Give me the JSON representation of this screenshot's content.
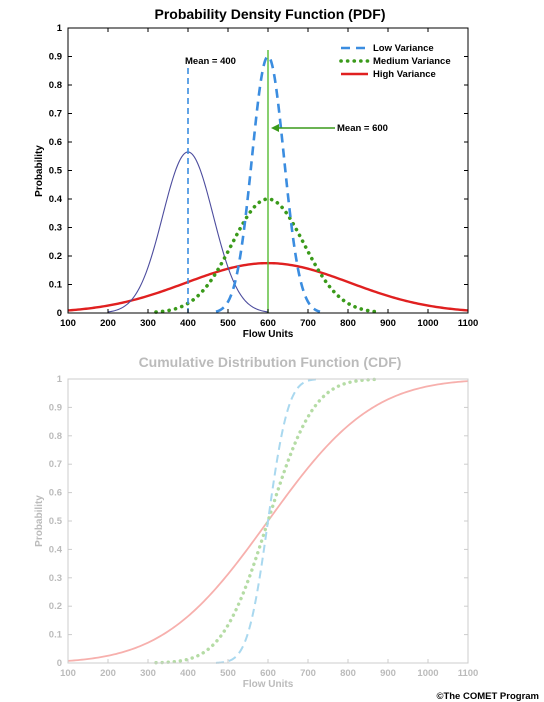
{
  "copyright": "©The COMET Program",
  "colors": {
    "low": "#3b8de0",
    "medium": "#3a9a1a",
    "high": "#e02020",
    "mean400": "#4d4d9e",
    "mean600_line": "#55bb33",
    "cdf_low": "#a9d8ef",
    "cdf_medium": "#b5dca5",
    "cdf_high": "#f7b0ad",
    "faded_axis": "#bbbbbb"
  },
  "chart_data": [
    {
      "type": "line",
      "title": "Probability Density Function (PDF)",
      "xlabel": "Flow Units",
      "ylabel": "Probability",
      "xlim": [
        100,
        1100
      ],
      "ylim": [
        0,
        1
      ],
      "xticks": [
        "100",
        "200",
        "300",
        "400",
        "500",
        "600",
        "700",
        "800",
        "900",
        "1000",
        "1100"
      ],
      "yticks": [
        "0",
        "0.1",
        "0.2",
        "0.3",
        "0.4",
        "0.5",
        "0.6",
        "0.7",
        "0.8",
        "0.9",
        "1"
      ],
      "legend_position": "top-right",
      "series": [
        {
          "name": "Low Variance",
          "style": "dashed",
          "mean": 600,
          "peak": 0.9,
          "sd": 40,
          "range": [
            470,
            730
          ]
        },
        {
          "name": "Medium Variance",
          "style": "dotted",
          "mean": 600,
          "peak": 0.4,
          "sd": 90,
          "range": [
            320,
            880
          ]
        },
        {
          "name": "High Variance",
          "style": "solid",
          "mean": 600,
          "peak": 0.175,
          "sd": 205,
          "range": [
            100,
            1100
          ]
        },
        {
          "name": "",
          "style": "thin",
          "mean": 400,
          "peak": 0.565,
          "sd": 63,
          "range": [
            200,
            600
          ]
        }
      ],
      "annotations": [
        {
          "text": "Mean = 400",
          "x": 400
        },
        {
          "text": "Mean = 600",
          "x": 600
        }
      ]
    },
    {
      "type": "line",
      "title": "Cumulative Distribution Function (CDF)",
      "xlabel": "Flow Units",
      "ylabel": "Probability",
      "xlim": [
        100,
        1100
      ],
      "ylim": [
        0,
        1
      ],
      "xticks": [
        "100",
        "200",
        "300",
        "400",
        "500",
        "600",
        "700",
        "800",
        "900",
        "1000",
        "1100"
      ],
      "yticks": [
        "0",
        "0.1",
        "0.2",
        "0.3",
        "0.4",
        "0.5",
        "0.6",
        "0.7",
        "0.8",
        "0.9",
        "1"
      ],
      "series": [
        {
          "name": "Low Variance",
          "style": "dashed",
          "mean": 600,
          "sd": 40,
          "range": [
            470,
            730
          ]
        },
        {
          "name": "Medium Variance",
          "style": "dotted",
          "mean": 600,
          "sd": 90,
          "range": [
            320,
            880
          ]
        },
        {
          "name": "High Variance",
          "style": "solid",
          "mean": 600,
          "sd": 205,
          "range": [
            100,
            1100
          ]
        }
      ]
    }
  ]
}
